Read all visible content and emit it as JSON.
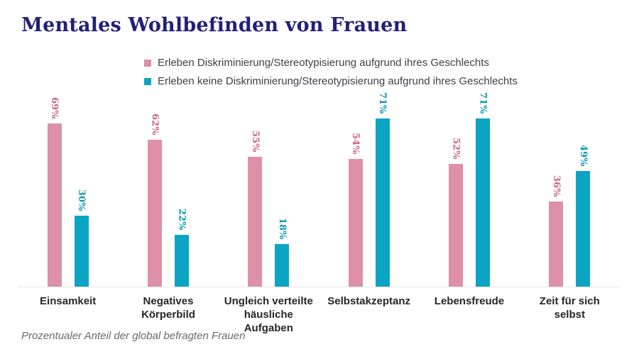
{
  "title": "Mentales Wohlbefinden von Frauen",
  "legend": {
    "items": [
      {
        "label": "Erleben Diskriminierung/Stereotypisierung aufgrund ihres Geschlechts",
        "color": "#D990A8"
      },
      {
        "label": "Erleben keine Diskriminierung/Stereotypisierung aufgrund ihres Geschlechts",
        "color": "#0CA4C3"
      }
    ]
  },
  "footer": "Prozentualer Anteil der global befragten Frauen",
  "chart_data": {
    "type": "bar",
    "title": "Mentales Wohlbefinden von Frauen",
    "categories": [
      "Einsamkeit",
      "Negatives Körperbild",
      "Ungleich verteilte häusliche Aufgaben",
      "Selbstakzeptanz",
      "Lebensfreude",
      "Zeit für sich selbst"
    ],
    "series": [
      {
        "name": "Erleben Diskriminierung/Stereotypisierung aufgrund ihres Geschlechts",
        "values": [
          69,
          62,
          55,
          54,
          52,
          36
        ],
        "color": "#DD90A8",
        "label_color": "#CE6286"
      },
      {
        "name": "Erleben keine Diskriminierung/Stereotypisierung aufgrund ihres Geschlechts",
        "values": [
          30,
          22,
          18,
          71,
          71,
          49
        ],
        "color": "#0CA4C3",
        "label_color": "#0A96B8"
      }
    ],
    "unit": "%",
    "value_label_rotation": 90,
    "xlabel": "",
    "ylabel": "",
    "ylim": [
      0,
      80
    ],
    "grid": false,
    "legend_position": "top-center",
    "caption": "Prozentualer Anteil der global befragten Frauen"
  },
  "colors": {
    "background": "#FFFFFF",
    "title": "#232078",
    "axis_line": "#E7E7E7",
    "category_label": "#262626",
    "legend_text": "#3D4147",
    "footer_text": "#6A6A6A"
  }
}
